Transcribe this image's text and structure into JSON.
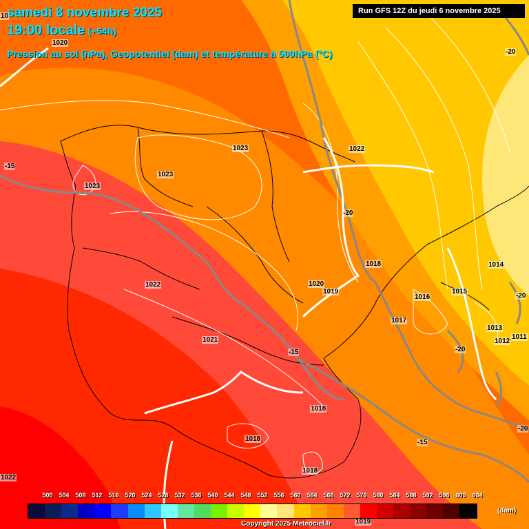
{
  "header": {
    "date_line": "samedi 8 novembre 2025",
    "time_line": "19:00 locale",
    "step": "(+54h)",
    "subtitle": "Pression au sol (hPa), Geopotentiel (dam) et température à 500hPa (°C)",
    "run_info": "Run GFS 12Z du jeudi 6 novembre 2025"
  },
  "pressure_labels": [
    "1020",
    "1023",
    "1023",
    "1023",
    "1022",
    "1018",
    "1014",
    "1016",
    "1015",
    "1013",
    "1012",
    "1011",
    "1017",
    "1022",
    "1020",
    "1019",
    "1021",
    "1018",
    "1018",
    "1018",
    "1022",
    "1019",
    "10"
  ],
  "temperature_labels": [
    "-20",
    "-15",
    "-20",
    "-20",
    "-15",
    "-20",
    "-20",
    "-15"
  ],
  "legend": {
    "values": [
      "500",
      "504",
      "508",
      "512",
      "516",
      "520",
      "524",
      "528",
      "532",
      "536",
      "540",
      "544",
      "548",
      "552",
      "556",
      "560",
      "564",
      "568",
      "572",
      "576",
      "580",
      "584",
      "588",
      "592",
      "596",
      "600",
      "604"
    ],
    "colors": [
      "#0a0a3c",
      "#0a1e5a",
      "#0a2a8c",
      "#0000c8",
      "#0000ff",
      "#1e3cff",
      "#0a8cff",
      "#32c8ff",
      "#78ffff",
      "#64e6a0",
      "#50dc64",
      "#78f000",
      "#c8ff00",
      "#ffff00",
      "#ffff96",
      "#ffe678",
      "#ffc800",
      "#ffa000",
      "#ff8200",
      "#ff5a32",
      "#ff0000",
      "#d20000",
      "#aa0000",
      "#8c0000",
      "#6e0000",
      "#500000",
      "#000000"
    ],
    "unit": "(dam)"
  },
  "copyright": "Copyright 2025 Meteociel.fr"
}
